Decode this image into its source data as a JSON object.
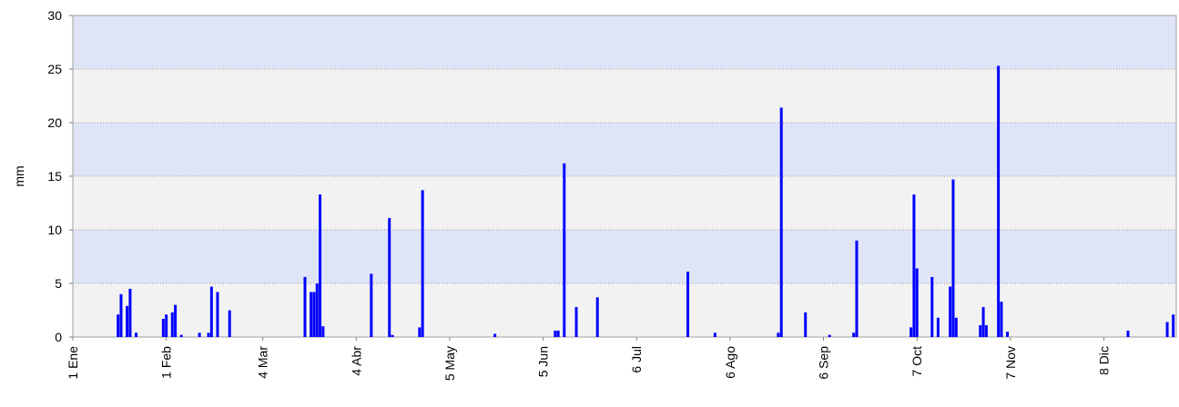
{
  "chart_data": {
    "type": "bar",
    "y_label": "mm",
    "color": "#0000ff",
    "grid": true,
    "band_colors": [
      "#f2f2f2",
      "#dfe4f7"
    ],
    "xlim": [
      0,
      366
    ],
    "ylim": [
      0,
      30
    ],
    "yticks": [
      0,
      5,
      10,
      15,
      20,
      25,
      30
    ],
    "xticks": [
      {
        "value": 0,
        "label": "1 Ene"
      },
      {
        "value": 31,
        "label": "1 Feb"
      },
      {
        "value": 63,
        "label": "4 Mar"
      },
      {
        "value": 94,
        "label": "4 Abr"
      },
      {
        "value": 125,
        "label": "5 May"
      },
      {
        "value": 156,
        "label": "5 Jun"
      },
      {
        "value": 187,
        "label": "6 Jul"
      },
      {
        "value": 218,
        "label": "6 Ago"
      },
      {
        "value": 249,
        "label": "6 Sep"
      },
      {
        "value": 280,
        "label": "7 Oct"
      },
      {
        "value": 311,
        "label": "7 Nov"
      },
      {
        "value": 342,
        "label": "8 Dic"
      }
    ],
    "x": [
      15,
      16,
      18,
      19,
      21,
      30,
      31,
      33,
      34,
      36,
      42,
      45,
      46,
      48,
      52,
      77,
      79,
      80,
      81,
      82,
      83,
      99,
      105,
      106,
      115,
      116,
      140,
      160,
      161,
      163,
      167,
      174,
      204,
      213,
      234,
      235,
      243,
      251,
      259,
      260,
      278,
      279,
      280,
      285,
      287,
      291,
      292,
      293,
      301,
      302,
      303,
      307,
      308,
      310,
      350,
      363,
      365
    ],
    "values": [
      2.1,
      4.0,
      2.9,
      4.5,
      0.4,
      1.7,
      2.1,
      2.3,
      3.0,
      0.2,
      0.4,
      0.4,
      4.7,
      4.2,
      2.5,
      5.6,
      4.2,
      4.2,
      5.0,
      13.3,
      1.0,
      5.9,
      11.1,
      0.2,
      0.9,
      13.7,
      0.3,
      0.6,
      0.6,
      16.2,
      2.8,
      3.7,
      6.1,
      0.4,
      0.4,
      21.4,
      2.3,
      0.2,
      0.4,
      9.0,
      0.9,
      13.3,
      6.4,
      5.6,
      1.8,
      4.7,
      14.7,
      1.8,
      1.1,
      2.8,
      1.1,
      25.3,
      3.3,
      0.5,
      0.6,
      1.4,
      2.1
    ]
  }
}
